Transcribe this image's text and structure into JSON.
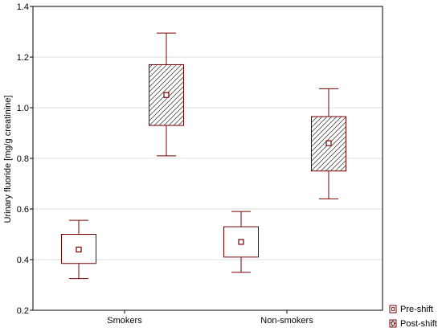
{
  "chart_data": {
    "type": "box",
    "title": "",
    "xlabel": "",
    "ylabel": "Urinary fluoride [mg/g creatinine]",
    "ylim": [
      0.2,
      1.4
    ],
    "yticks": [
      "0.2",
      "0.4",
      "0.6",
      "0.8",
      "1.0",
      "1.2",
      "1.4"
    ],
    "grid": true,
    "legend_position": "bottom-right",
    "categories": [
      "Smokers",
      "Non-smokers"
    ],
    "colors": {
      "box_stroke": "#7a0000",
      "axis": "#000000",
      "grid": "#dddddd",
      "hatch": "#555555"
    },
    "series": [
      {
        "name": "Pre-shift",
        "fill": "plain",
        "values": [
          {
            "category": "Smokers",
            "mean": 0.44,
            "box_low": 0.385,
            "box_high": 0.5,
            "whisker_low": 0.325,
            "whisker_high": 0.555
          },
          {
            "category": "Non-smokers",
            "mean": 0.47,
            "box_low": 0.41,
            "box_high": 0.53,
            "whisker_low": 0.35,
            "whisker_high": 0.59
          }
        ]
      },
      {
        "name": "Post-shift",
        "fill": "hatched",
        "values": [
          {
            "category": "Smokers",
            "mean": 1.05,
            "box_low": 0.93,
            "box_high": 1.17,
            "whisker_low": 0.81,
            "whisker_high": 1.295
          },
          {
            "category": "Non-smokers",
            "mean": 0.86,
            "box_low": 0.75,
            "box_high": 0.965,
            "whisker_low": 0.64,
            "whisker_high": 1.075
          }
        ]
      }
    ]
  }
}
